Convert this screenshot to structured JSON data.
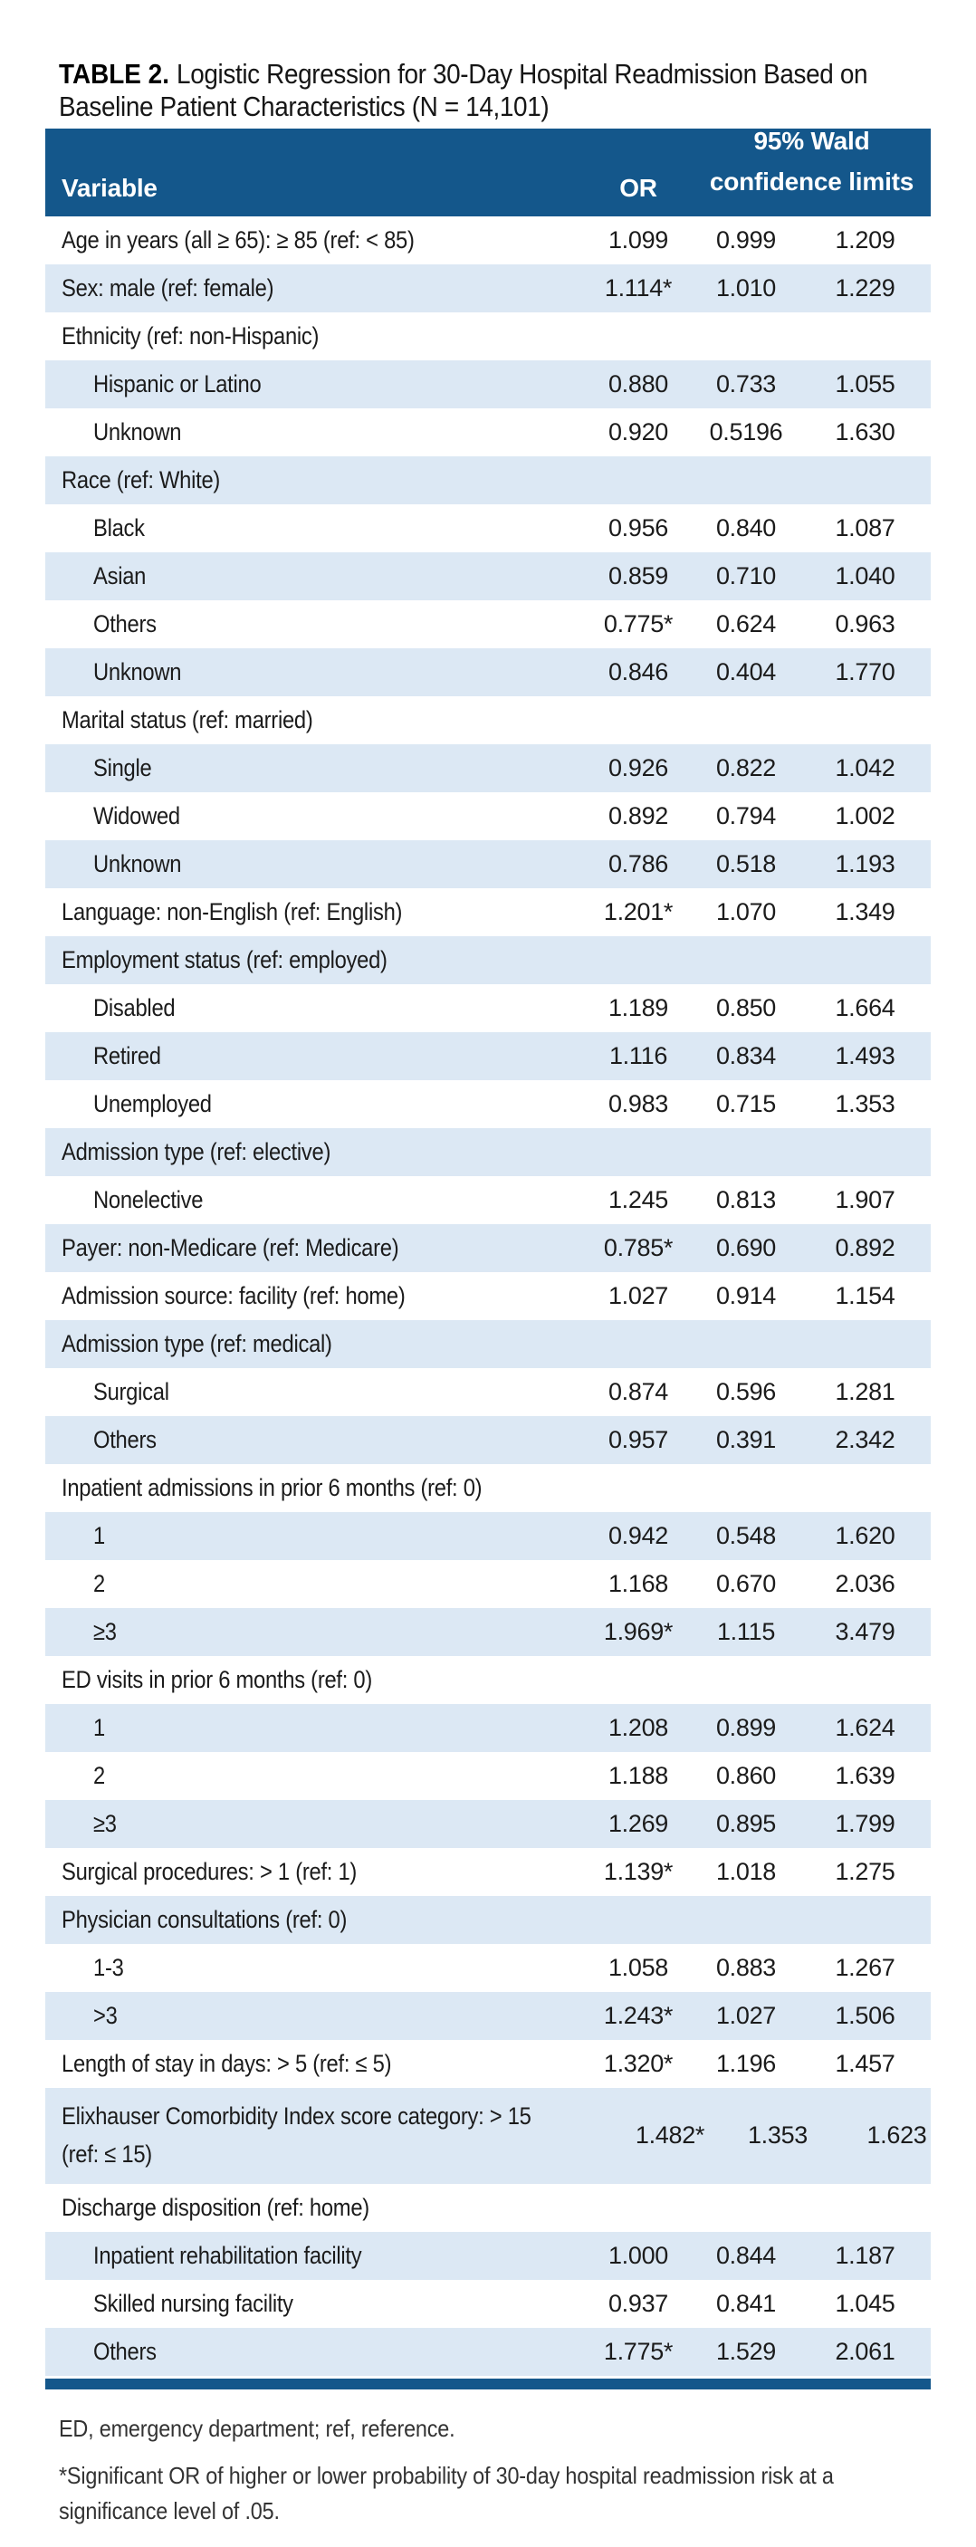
{
  "title": {
    "prefix": "TABLE 2.",
    "text": "Logistic Regression for 30-Day Hospital Readmission Based on Baseline Patient Characteristics (N = 14,101)"
  },
  "table": {
    "header": {
      "variable": "Variable",
      "or": "OR",
      "ci_line1": "95% Wald",
      "ci_line2": "confidence limits"
    },
    "rows": [
      {
        "label": "Age in years (all ≥ 65): ≥ 85 (ref: < 85)",
        "indent": false,
        "or": "1.099",
        "low": "0.999",
        "high": "1.209"
      },
      {
        "label": "Sex: male (ref: female)",
        "indent": false,
        "or": "1.114*",
        "low": "1.010",
        "high": "1.229"
      },
      {
        "label": "Ethnicity (ref: non-Hispanic)",
        "indent": false,
        "or": "",
        "low": "",
        "high": ""
      },
      {
        "label": "Hispanic or Latino",
        "indent": true,
        "or": "0.880",
        "low": "0.733",
        "high": "1.055"
      },
      {
        "label": "Unknown",
        "indent": true,
        "or": "0.920",
        "low": "0.5196",
        "high": "1.630"
      },
      {
        "label": "Race (ref: White)",
        "indent": false,
        "or": "",
        "low": "",
        "high": ""
      },
      {
        "label": "Black",
        "indent": true,
        "or": "0.956",
        "low": "0.840",
        "high": "1.087"
      },
      {
        "label": "Asian",
        "indent": true,
        "or": "0.859",
        "low": "0.710",
        "high": "1.040"
      },
      {
        "label": "Others",
        "indent": true,
        "or": "0.775*",
        "low": "0.624",
        "high": "0.963"
      },
      {
        "label": "Unknown",
        "indent": true,
        "or": "0.846",
        "low": "0.404",
        "high": "1.770"
      },
      {
        "label": "Marital status (ref: married)",
        "indent": false,
        "or": "",
        "low": "",
        "high": ""
      },
      {
        "label": "Single",
        "indent": true,
        "or": "0.926",
        "low": "0.822",
        "high": "1.042"
      },
      {
        "label": "Widowed",
        "indent": true,
        "or": "0.892",
        "low": "0.794",
        "high": "1.002"
      },
      {
        "label": "Unknown",
        "indent": true,
        "or": "0.786",
        "low": "0.518",
        "high": "1.193"
      },
      {
        "label": "Language: non-English (ref: English)",
        "indent": false,
        "or": "1.201*",
        "low": "1.070",
        "high": "1.349"
      },
      {
        "label": "Employment status (ref: employed)",
        "indent": false,
        "or": "",
        "low": "",
        "high": ""
      },
      {
        "label": "Disabled",
        "indent": true,
        "or": "1.189",
        "low": "0.850",
        "high": "1.664"
      },
      {
        "label": "Retired",
        "indent": true,
        "or": "1.116",
        "low": "0.834",
        "high": "1.493"
      },
      {
        "label": "Unemployed",
        "indent": true,
        "or": "0.983",
        "low": "0.715",
        "high": "1.353"
      },
      {
        "label": "Admission type (ref: elective)",
        "indent": false,
        "or": "",
        "low": "",
        "high": ""
      },
      {
        "label": "Nonelective",
        "indent": true,
        "or": "1.245",
        "low": "0.813",
        "high": "1.907"
      },
      {
        "label": "Payer: non-Medicare (ref: Medicare)",
        "indent": false,
        "or": "0.785*",
        "low": "0.690",
        "high": "0.892"
      },
      {
        "label": "Admission source: facility (ref: home)",
        "indent": false,
        "or": "1.027",
        "low": "0.914",
        "high": "1.154"
      },
      {
        "label": "Admission type (ref: medical)",
        "indent": false,
        "or": "",
        "low": "",
        "high": ""
      },
      {
        "label": "Surgical",
        "indent": true,
        "or": "0.874",
        "low": "0.596",
        "high": "1.281"
      },
      {
        "label": "Others",
        "indent": true,
        "or": "0.957",
        "low": "0.391",
        "high": "2.342"
      },
      {
        "label": "Inpatient admissions in prior 6 months (ref: 0)",
        "indent": false,
        "or": "",
        "low": "",
        "high": ""
      },
      {
        "label": "1",
        "indent": true,
        "or": "0.942",
        "low": "0.548",
        "high": "1.620"
      },
      {
        "label": "2",
        "indent": true,
        "or": "1.168",
        "low": "0.670",
        "high": "2.036"
      },
      {
        "label": "≥3",
        "indent": true,
        "or": "1.969*",
        "low": "1.115",
        "high": "3.479"
      },
      {
        "label": "ED visits in prior 6 months (ref: 0)",
        "indent": false,
        "or": "",
        "low": "",
        "high": ""
      },
      {
        "label": "1",
        "indent": true,
        "or": "1.208",
        "low": "0.899",
        "high": "1.624"
      },
      {
        "label": "2",
        "indent": true,
        "or": "1.188",
        "low": "0.860",
        "high": "1.639"
      },
      {
        "label": "≥3",
        "indent": true,
        "or": "1.269",
        "low": "0.895",
        "high": "1.799"
      },
      {
        "label": "Surgical procedures: > 1 (ref: 1)",
        "indent": false,
        "or": "1.139*",
        "low": "1.018",
        "high": "1.275"
      },
      {
        "label": "Physician consultations (ref: 0)",
        "indent": false,
        "or": "",
        "low": "",
        "high": ""
      },
      {
        "label": "1-3",
        "indent": true,
        "or": "1.058",
        "low": "0.883",
        "high": "1.267"
      },
      {
        "label": ">3",
        "indent": true,
        "or": "1.243*",
        "low": "1.027",
        "high": "1.506"
      },
      {
        "label": "Length of stay in days: > 5 (ref: ≤ 5)",
        "indent": false,
        "or": "1.320*",
        "low": "1.196",
        "high": "1.457"
      },
      {
        "label": "Elixhauser Comorbidity Index score category: > 15 (ref: ≤ 15)",
        "indent": false,
        "wrap": true,
        "or": "1.482*",
        "low": "1.353",
        "high": "1.623"
      },
      {
        "label": "Discharge disposition (ref: home)",
        "indent": false,
        "or": "",
        "low": "",
        "high": ""
      },
      {
        "label": "Inpatient rehabilitation facility",
        "indent": true,
        "or": "1.000",
        "low": "0.844",
        "high": "1.187"
      },
      {
        "label": "Skilled nursing facility",
        "indent": true,
        "or": "0.937",
        "low": "0.841",
        "high": "1.045"
      },
      {
        "label": "Others",
        "indent": true,
        "or": "1.775*",
        "low": "1.529",
        "high": "2.061"
      }
    ]
  },
  "footnotes": [
    "ED, emergency department; ref, reference.",
    "*Significant OR of higher or lower probability of 30-day hospital readmission risk at a significance level of .05."
  ],
  "colors": {
    "header_bg": "#14578B",
    "row_alt_bg": "#DCE8F4",
    "header_text": "#FFFFFF",
    "body_text": "#1B1B1B",
    "footnote_text": "#333333"
  }
}
